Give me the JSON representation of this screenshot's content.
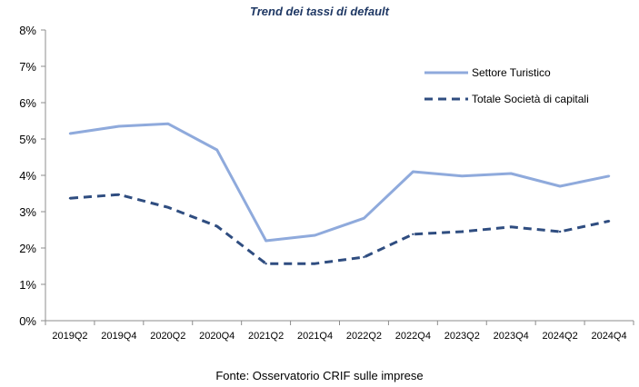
{
  "chart_data": {
    "type": "line",
    "title": "Trend dei tassi di default",
    "xlabel": "",
    "ylabel": "",
    "categories": [
      "2019Q2",
      "2019Q4",
      "2020Q2",
      "2020Q4",
      "2021Q2",
      "2021Q4",
      "2022Q2",
      "2022Q4",
      "2023Q2",
      "2023Q4",
      "2024Q2",
      "2024Q4"
    ],
    "y_ticks": [
      "0%",
      "1%",
      "2%",
      "3%",
      "4%",
      "5%",
      "6%",
      "7%",
      "8%"
    ],
    "ylim": [
      0,
      8
    ],
    "grid": false,
    "legend_position": "top-right",
    "series": [
      {
        "name": "Settore Turistico",
        "color": "#8faadc",
        "style": "solid",
        "values": [
          5.15,
          5.35,
          5.42,
          4.7,
          2.2,
          2.35,
          2.82,
          4.1,
          3.98,
          4.05,
          3.7,
          3.98
        ]
      },
      {
        "name": "Totale Società di capitali",
        "color": "#2f4d80",
        "style": "dashed",
        "values": [
          3.37,
          3.47,
          3.12,
          2.6,
          1.57,
          1.57,
          1.75,
          2.38,
          2.45,
          2.58,
          2.45,
          2.74
        ]
      }
    ],
    "source": "Fonte: Osservatorio CRIF sulle imprese"
  }
}
